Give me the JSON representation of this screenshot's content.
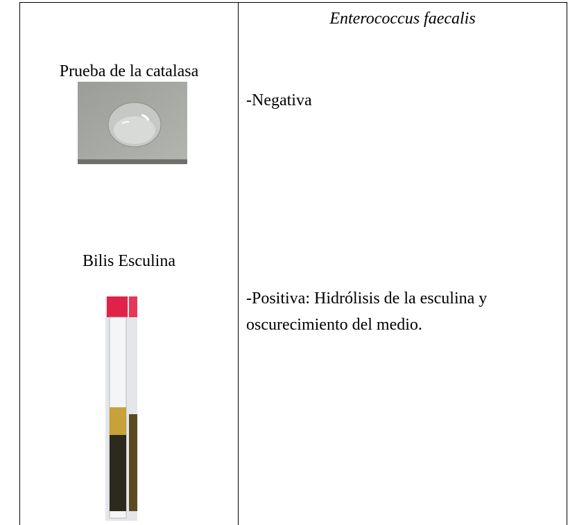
{
  "table": {
    "organism": "Enterococcus faecalis",
    "rows": [
      {
        "test": "Prueba de la catalasa",
        "result": "-Negativa"
      },
      {
        "test": "Bilis Esculina",
        "result": "-Positiva: Hidrólisis de la esculina y oscurecimiento del medio."
      }
    ]
  }
}
